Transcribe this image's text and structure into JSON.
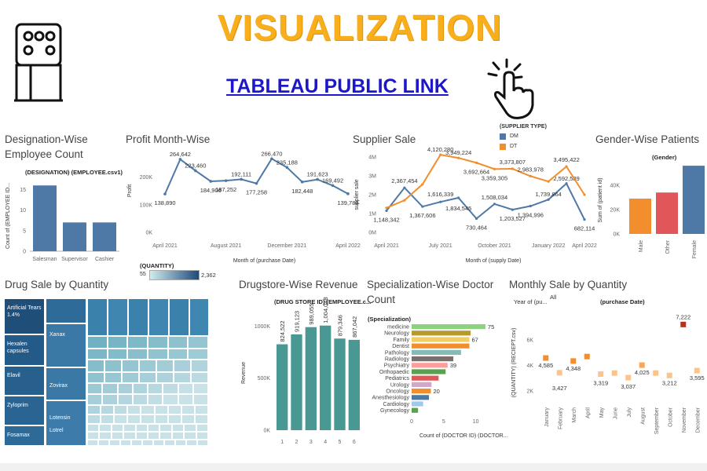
{
  "header": {
    "title": "VISUALIZATION",
    "link_text": "TABLEAU PUBLIC LINK"
  },
  "icons": {
    "logo": "building-icon",
    "hand": "pointer-hand-icon"
  },
  "colors": {
    "title": "#f9ae1b",
    "link": "#1c18c9",
    "blue": "#4e79a7",
    "orange": "#f28e2b",
    "teal": "#499894"
  },
  "chart_data": [
    {
      "id": "designation",
      "type": "bar",
      "title": "Designation-Wise Employee Count",
      "subtitle": "(DESIGNATION) (EMPLOYEE.csv1)",
      "ylabel": "Count of (EMPLOYEE ID...",
      "categories": [
        "Salesman",
        "Supervisor",
        "Cashier"
      ],
      "values": [
        16,
        7,
        7
      ],
      "ylim": [
        0,
        17
      ],
      "yticks": [
        "0",
        "5",
        "10",
        "15"
      ]
    },
    {
      "id": "profit",
      "type": "line",
      "title": "Profit Month-Wise",
      "ylabel": "Profit",
      "xlabel": "Month of (purchase Date)",
      "xticks": [
        "April 2021",
        "August 2021",
        "December 2021",
        "April 2022"
      ],
      "yticks": [
        "0K",
        "100K",
        "200K"
      ],
      "ylim": [
        0,
        290000
      ],
      "values": [
        138890,
        264642,
        223460,
        184906,
        187252,
        192111,
        177258,
        266470,
        235188,
        182448,
        191623,
        169492,
        139788
      ],
      "labels": [
        "138,890",
        "264,642",
        "223,460",
        "184,906",
        "187,252",
        "192,111",
        "177,258",
        "266,470",
        "235,188",
        "182,448",
        "191,623",
        "169,492",
        "139,788"
      ]
    },
    {
      "id": "supplier",
      "type": "line",
      "title": "Supplier Sale",
      "legend_title": "(SUPPLIER TYPE)",
      "ylabel": "supplier sale",
      "xlabel": "Month of (supply Date)",
      "xticks": [
        "April 2021",
        "July 2021",
        "October 2021",
        "January 2022",
        "April 2022"
      ],
      "yticks": [
        "0M",
        "1M",
        "2M",
        "3M",
        "4M"
      ],
      "ylim": [
        0,
        4000000
      ],
      "series": [
        {
          "name": "DM",
          "color": "#4e79a7",
          "values": [
            1148342,
            2367454,
            1367606,
            1616339,
            1834545,
            730464,
            1508034,
            1203527,
            1394996,
            1739864,
            2592589,
            682114
          ],
          "labels": [
            "1,148,342",
            "2,367,454",
            "1,367,606",
            "1,616,339",
            "1,834,545",
            "730,464",
            "1,508,034",
            "1,203,527",
            "1,394,996",
            "1,739,864",
            "2,592,589",
            "682,114"
          ]
        },
        {
          "name": "DT",
          "color": "#f28e2b",
          "values": [
            1300000,
            1700000,
            2550000,
            4120280,
            3949224,
            3692664,
            3359305,
            3373807,
            2983978,
            2700000,
            3495422,
            2000000
          ],
          "labels": [
            "",
            "",
            "",
            "4,120,280",
            "3,949,224",
            "3,692,664",
            "3,359,305",
            "3,373,807",
            "2,983,978",
            "",
            "3,495,422",
            ""
          ]
        }
      ]
    },
    {
      "id": "gender",
      "type": "bar",
      "title": "Gender-Wise Patients",
      "subtitle": "(Gender)",
      "ylabel": "Sum of (patient id)",
      "categories": [
        "Male",
        "Other",
        "Female"
      ],
      "values": [
        29000,
        34000,
        56000
      ],
      "colors": [
        "#f28e2b",
        "#e15759",
        "#4e79a7"
      ],
      "yticks": [
        "0K",
        "20K",
        "40K"
      ],
      "ylim": [
        0,
        58000
      ]
    },
    {
      "id": "drug",
      "type": "heatmap",
      "title": "Drug Sale by Quantity",
      "legend_title": "(QUANTITY)",
      "legend_min": "55",
      "legend_max": "2,362",
      "labels": [
        "Artificial Tears 1.4%",
        "Hexalen capsules",
        "Elavil",
        "Zyloprim",
        "Fosamax",
        "Xanax",
        "Zovirax",
        "Lotensin",
        "Lotrel"
      ]
    },
    {
      "id": "drugstore",
      "type": "bar",
      "title": "Drugstore-Wise Revenue",
      "subtitle": "(DRUG STORE ID) (EMPLOYEE.c...",
      "ylabel": "Revenue",
      "categories": [
        "1",
        "2",
        "3",
        "4",
        "5",
        "6"
      ],
      "values": [
        824522,
        919123,
        989055,
        1004048,
        879346,
        867042
      ],
      "labels": [
        "824,522",
        "919,123",
        "989,055",
        "1,004,048",
        "879,346",
        "867,042"
      ],
      "yticks": [
        "0K",
        "500K",
        "1000K"
      ],
      "ylim": [
        0,
        1100000
      ]
    },
    {
      "id": "specialization",
      "type": "bar",
      "title": "Specialization-Wise Doctor Count",
      "subtitle": "(Specialization)",
      "xlabel": "Count of (DOCTOR ID) (DOCTOR...",
      "xticks": [
        "0",
        "5",
        "10"
      ],
      "xlim": [
        0,
        12
      ],
      "categories": [
        "medicine",
        "Neurology",
        "Family",
        "Dentist",
        "Pathology",
        "Radiology",
        "Psychiatry",
        "Orthopaedic",
        "Pediatrics",
        "Urology",
        "Oncology",
        "Anesthesiology",
        "Cardiology",
        "Gynecology"
      ],
      "values": [
        11.5,
        9.2,
        9.0,
        9.0,
        7.7,
        6.5,
        5.6,
        5.3,
        4.2,
        3.1,
        3.0,
        2.7,
        1.8,
        1.0
      ],
      "colors": [
        "#8cd17d",
        "#b6992d",
        "#f1ce63",
        "#f28e2b",
        "#86bcb6",
        "#79706e",
        "#ff9d9a",
        "#59a14f",
        "#e15759",
        "#d4a6c8",
        "#f28e2b",
        "#4e79a7",
        "#a0cbe8",
        "#59a14f"
      ],
      "labels": [
        "75",
        "",
        "67",
        "",
        "",
        "",
        "39",
        "",
        "",
        "",
        "20",
        "",
        "",
        ""
      ]
    },
    {
      "id": "monthly",
      "type": "scatter",
      "title": "Monthly Sale by Quantity",
      "filter_label": "Year of (pu...",
      "filter_value": "All",
      "subtitle": "(purchase Date)",
      "ylabel": "(QUANTITY) (RECIEPT.csv)",
      "yticks": [
        "2K",
        "4K",
        "6K"
      ],
      "ylim": [
        1500,
        7800
      ],
      "categories": [
        "January",
        "February",
        "March",
        "April",
        "May",
        "June",
        "July",
        "August",
        "September",
        "October",
        "November",
        "December"
      ],
      "values": [
        4585,
        3427,
        4348,
        4700,
        3319,
        3400,
        3037,
        4025,
        3400,
        3212,
        7222,
        3595
      ],
      "labels": [
        "4,585",
        "3,427",
        "4,348",
        "",
        "3,319",
        "",
        "3,037",
        "4,025",
        "",
        "3,212",
        "7,222",
        "3,595"
      ],
      "colors": [
        "#f28e2b",
        "#fdc48a",
        "#f28e2b",
        "#f28e2b",
        "#fdc48a",
        "#fdc48a",
        "#fdc48a",
        "#f8a85c",
        "#fdc48a",
        "#fdc48a",
        "#b2331f",
        "#fdc48a"
      ]
    }
  ]
}
